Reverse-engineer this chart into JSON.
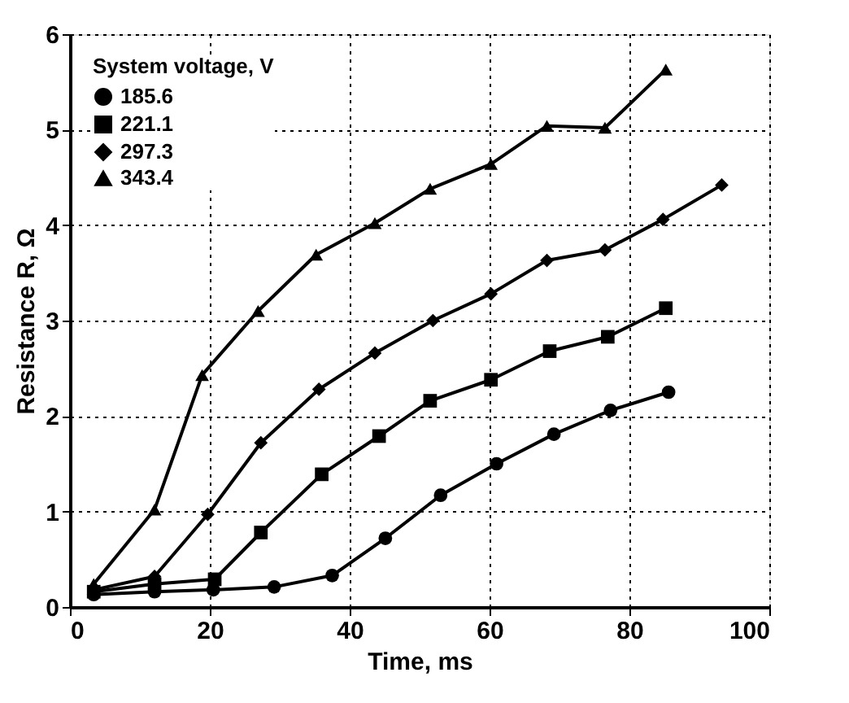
{
  "chart_data": {
    "type": "line",
    "xlabel": "Time, ms",
    "ylabel": "Resistance R, Ω",
    "legend_title": "System voltage, V",
    "legend": "top left",
    "grid": true,
    "xlim": [
      0,
      100
    ],
    "xticks": [
      0,
      20,
      40,
      60,
      80,
      100
    ],
    "ylim": [
      0,
      6
    ],
    "yticks": [
      0,
      1,
      2,
      3,
      4,
      5,
      6
    ],
    "series": [
      {
        "name": "185.6",
        "color": "#000000",
        "marker": "circle",
        "x": [
          3.4,
          12.1,
          20.5,
          29.2,
          37.5,
          45.1,
          53,
          61,
          69.2,
          77.3,
          85.6
        ],
        "values": [
          0.13,
          0.16,
          0.18,
          0.21,
          0.33,
          0.72,
          1.17,
          1.5,
          1.81,
          2.06,
          2.25
        ]
      },
      {
        "name": "221.1",
        "color": "#000000",
        "marker": "square",
        "x": [
          3.4,
          12.1,
          20.7,
          27.3,
          36,
          44.2,
          51.5,
          60.2,
          68.6,
          76.9,
          85.2
        ],
        "values": [
          0.16,
          0.24,
          0.29,
          0.78,
          1.39,
          1.79,
          2.16,
          2.38,
          2.68,
          2.83,
          3.13
        ]
      },
      {
        "name": "297.3",
        "color": "#000000",
        "marker": "diamond",
        "x": [
          3.4,
          12.1,
          19.7,
          27.3,
          35.6,
          43.6,
          51.9,
          60.2,
          68.2,
          76.5,
          84.8,
          93.2
        ],
        "values": [
          0.18,
          0.32,
          0.97,
          1.72,
          2.28,
          2.66,
          3.0,
          3.28,
          3.63,
          3.74,
          4.06,
          4.42
        ]
      },
      {
        "name": "343.4",
        "color": "#000000",
        "marker": "triangle",
        "x": [
          3.4,
          12.1,
          18.9,
          26.9,
          35.2,
          43.6,
          51.5,
          60.2,
          68.2,
          76.5,
          85.2
        ],
        "values": [
          0.24,
          1.02,
          2.43,
          3.1,
          3.69,
          4.02,
          4.38,
          4.64,
          5.04,
          5.02,
          5.63
        ]
      }
    ]
  }
}
